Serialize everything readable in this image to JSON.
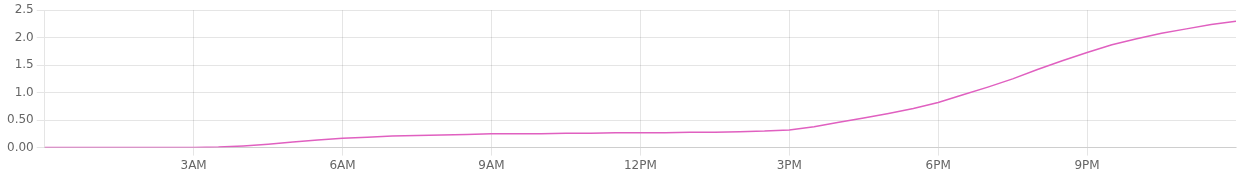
{
  "chart_data": {
    "type": "line",
    "x": [
      0,
      0.5,
      1.0,
      1.5,
      2.0,
      2.5,
      3.0,
      3.5,
      4.0,
      4.5,
      5.0,
      5.5,
      6.0,
      6.5,
      7.0,
      7.5,
      8.0,
      8.5,
      9.0,
      9.5,
      10.0,
      10.5,
      11.0,
      11.5,
      12.0,
      12.5,
      13.0,
      13.5,
      14.0,
      14.5,
      15.0,
      15.5,
      16.0,
      16.5,
      17.0,
      17.5,
      18.0,
      18.5,
      19.0,
      19.5,
      20.0,
      20.5,
      21.0,
      21.5,
      22.0,
      22.5,
      23.0,
      23.5,
      24.0
    ],
    "values": [
      0.0,
      0.0,
      0.0,
      0.0,
      0.0,
      0.0,
      0.0,
      0.01,
      0.03,
      0.06,
      0.1,
      0.14,
      0.17,
      0.19,
      0.21,
      0.22,
      0.23,
      0.24,
      0.25,
      0.25,
      0.25,
      0.26,
      0.26,
      0.27,
      0.27,
      0.27,
      0.28,
      0.28,
      0.29,
      0.3,
      0.32,
      0.38,
      0.46,
      0.54,
      0.62,
      0.71,
      0.82,
      0.96,
      1.1,
      1.25,
      1.42,
      1.58,
      1.73,
      1.87,
      1.98,
      2.08,
      2.16,
      2.24,
      2.3
    ],
    "color": "#e060c0",
    "xlim": [
      0,
      24
    ],
    "xticks": [
      {
        "value": 3,
        "label": "3AM"
      },
      {
        "value": 6,
        "label": "6AM"
      },
      {
        "value": 9,
        "label": "9AM"
      },
      {
        "value": 12,
        "label": "12PM"
      },
      {
        "value": 15,
        "label": "3PM"
      },
      {
        "value": 18,
        "label": "6PM"
      },
      {
        "value": 21,
        "label": "9PM"
      }
    ],
    "ylim": [
      0,
      2.5
    ],
    "yticks": [
      {
        "value": 0.0,
        "label": "0.00"
      },
      {
        "value": 0.5,
        "label": "0.50"
      },
      {
        "value": 1.0,
        "label": "1.0"
      },
      {
        "value": 1.5,
        "label": "1.5"
      },
      {
        "value": 2.0,
        "label": "2.0"
      },
      {
        "value": 2.5,
        "label": "2.5"
      }
    ],
    "grid": true
  }
}
